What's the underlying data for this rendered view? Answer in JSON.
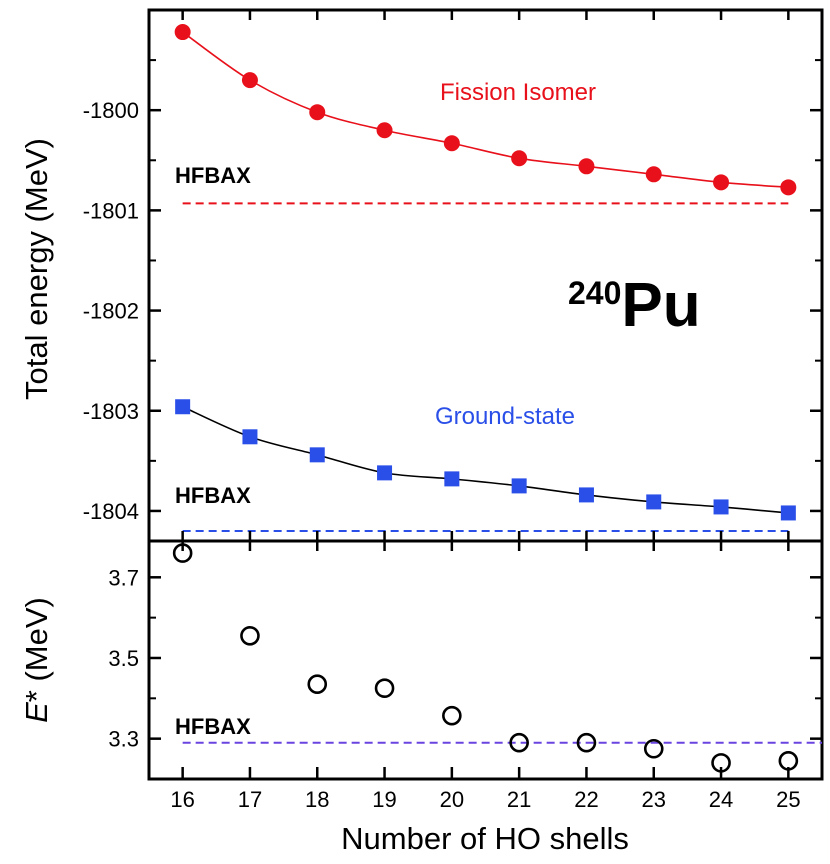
{
  "chart_data": [
    {
      "type": "line",
      "panel": "top",
      "ylabel": "Total energy  (MeV)",
      "xlim": [
        15.5,
        25.5
      ],
      "ylim": [
        -1804.3,
        -1799.0
      ],
      "x": [
        16,
        17,
        18,
        19,
        20,
        21,
        22,
        23,
        24,
        25
      ],
      "yticks": [
        "-1800",
        "-1801",
        "-1802",
        "-1803",
        "-1804"
      ],
      "ytick_values": [
        -1800,
        -1801,
        -1802,
        -1803,
        -1804
      ],
      "series": [
        {
          "name": "Fission Isomer",
          "color": "#e8101a",
          "marker": "circle",
          "values": [
            -1799.22,
            -1799.7,
            -1800.02,
            -1800.2,
            -1800.33,
            -1800.48,
            -1800.56,
            -1800.64,
            -1800.72,
            -1800.77
          ]
        },
        {
          "name": "Ground-state",
          "color": "#2a4fe8",
          "marker": "square",
          "values": [
            -1802.96,
            -1803.26,
            -1803.44,
            -1803.62,
            -1803.68,
            -1803.75,
            -1803.84,
            -1803.91,
            -1803.96,
            -1804.02
          ]
        }
      ],
      "reference_lines": [
        {
          "label": "HFBAX",
          "value": -1800.93,
          "color": "#e8101a",
          "x_from": 16,
          "x_to": 25
        },
        {
          "label": "HFBAX",
          "value": -1804.2,
          "color": "#2a4fe8",
          "x_from": 16,
          "x_to": 25
        }
      ],
      "annotation": {
        "mass": "240",
        "symbol": "Pu"
      }
    },
    {
      "type": "scatter",
      "panel": "bottom",
      "ylabel_italic": "E",
      "ylabel_rest": "* (MeV)",
      "xlabel": "Number of HO shells",
      "xlim": [
        15.5,
        25.5
      ],
      "ylim": [
        3.2,
        3.79
      ],
      "x": [
        16,
        17,
        18,
        19,
        20,
        21,
        22,
        23,
        24,
        25
      ],
      "xticks": [
        "16",
        "17",
        "18",
        "19",
        "20",
        "21",
        "22",
        "23",
        "24",
        "25"
      ],
      "yticks": [
        "3.7",
        "3.5",
        "3.3"
      ],
      "ytick_values": [
        3.7,
        3.5,
        3.3
      ],
      "series": [
        {
          "name": "E*",
          "color": "#000000",
          "marker": "open-circle",
          "values": [
            3.76,
            3.555,
            3.435,
            3.425,
            3.357,
            3.29,
            3.29,
            3.275,
            3.24,
            3.245
          ]
        }
      ],
      "reference_lines": [
        {
          "label": "HFBAX",
          "value": 3.29,
          "color": "#6a44e0",
          "x_from": 16,
          "x_to": 25.5
        }
      ]
    }
  ]
}
